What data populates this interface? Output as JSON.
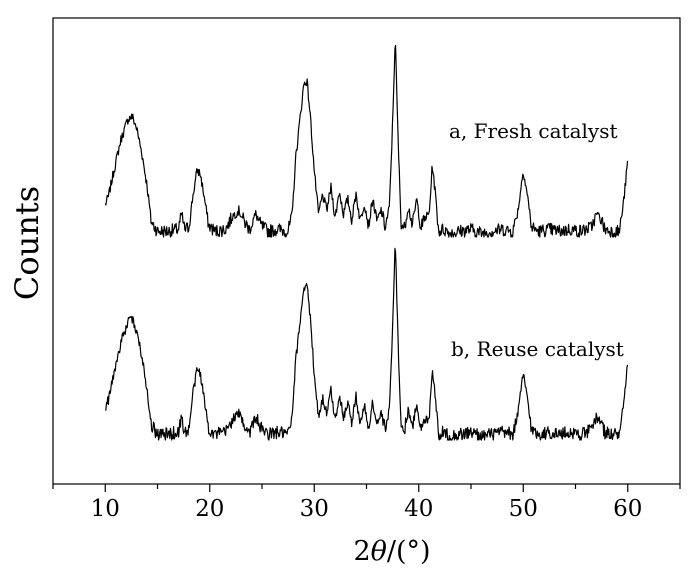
{
  "chart_data": {
    "type": "line",
    "xlabel_prefix": "2",
    "xlabel_symbol": "θ",
    "xlabel_suffix": "/(°)",
    "ylabel": "Counts",
    "xlim": [
      5,
      65
    ],
    "xticks": [
      10,
      20,
      30,
      40,
      50,
      60
    ],
    "xminor_step": 5,
    "yticks": [],
    "grid": false,
    "legend": "none",
    "line_color": "#000000",
    "series": [
      {
        "name": "a, Fresh catalyst",
        "points": [
          [
            10.0,
            17
          ],
          [
            10.3,
            21
          ],
          [
            10.8,
            34
          ],
          [
            11.5,
            51
          ],
          [
            12.2,
            62
          ],
          [
            12.6,
            63
          ],
          [
            13.0,
            57
          ],
          [
            13.5,
            44
          ],
          [
            14.0,
            27
          ],
          [
            14.4,
            8
          ],
          [
            15.0,
            3
          ],
          [
            16.0,
            3
          ],
          [
            17.0,
            4
          ],
          [
            17.3,
            12
          ],
          [
            17.6,
            4
          ],
          [
            18.0,
            5
          ],
          [
            18.4,
            22
          ],
          [
            18.8,
            35
          ],
          [
            19.1,
            33
          ],
          [
            19.5,
            20
          ],
          [
            19.9,
            6
          ],
          [
            20.5,
            3
          ],
          [
            21.5,
            4
          ],
          [
            22.2,
            11
          ],
          [
            22.8,
            14
          ],
          [
            23.3,
            8
          ],
          [
            23.8,
            4
          ],
          [
            24.4,
            12
          ],
          [
            24.9,
            6
          ],
          [
            25.6,
            3
          ],
          [
            26.5,
            4
          ],
          [
            27.5,
            3
          ],
          [
            27.9,
            12
          ],
          [
            28.2,
            40
          ],
          [
            28.6,
            60
          ],
          [
            29.0,
            80
          ],
          [
            29.3,
            82
          ],
          [
            29.6,
            65
          ],
          [
            30.0,
            35
          ],
          [
            30.4,
            12
          ],
          [
            30.8,
            22
          ],
          [
            31.2,
            14
          ],
          [
            31.6,
            26
          ],
          [
            32.0,
            10
          ],
          [
            32.4,
            24
          ],
          [
            32.8,
            12
          ],
          [
            33.2,
            20
          ],
          [
            33.6,
            9
          ],
          [
            34.0,
            23
          ],
          [
            34.4,
            8
          ],
          [
            34.8,
            18
          ],
          [
            35.2,
            6
          ],
          [
            35.6,
            20
          ],
          [
            36.0,
            8
          ],
          [
            36.4,
            14
          ],
          [
            36.8,
            5
          ],
          [
            37.2,
            16
          ],
          [
            37.5,
            60
          ],
          [
            37.75,
            105
          ],
          [
            38.0,
            55
          ],
          [
            38.3,
            8
          ],
          [
            38.6,
            4
          ],
          [
            39.0,
            16
          ],
          [
            39.4,
            6
          ],
          [
            39.8,
            20
          ],
          [
            40.2,
            5
          ],
          [
            40.6,
            10
          ],
          [
            41.0,
            12
          ],
          [
            41.3,
            38
          ],
          [
            41.6,
            22
          ],
          [
            41.9,
            3
          ],
          [
            42.4,
            4
          ],
          [
            43.0,
            2
          ],
          [
            44.0,
            3
          ],
          [
            45.0,
            4
          ],
          [
            46.0,
            2
          ],
          [
            47.0,
            3
          ],
          [
            48.0,
            4
          ],
          [
            49.0,
            3
          ],
          [
            49.5,
            14
          ],
          [
            50.0,
            35
          ],
          [
            50.4,
            22
          ],
          [
            50.8,
            5
          ],
          [
            51.5,
            3
          ],
          [
            52.5,
            4
          ],
          [
            53.5,
            3
          ],
          [
            54.5,
            4
          ],
          [
            55.5,
            3
          ],
          [
            56.5,
            5
          ],
          [
            57.0,
            12
          ],
          [
            57.4,
            10
          ],
          [
            57.8,
            4
          ],
          [
            58.5,
            3
          ],
          [
            59.2,
            3
          ],
          [
            59.6,
            18
          ],
          [
            60.0,
            40
          ]
        ]
      },
      {
        "name": "b, Reuse catalyst",
        "points": [
          [
            10.0,
            17
          ],
          [
            10.3,
            21
          ],
          [
            10.8,
            34
          ],
          [
            11.5,
            51
          ],
          [
            12.2,
            62
          ],
          [
            12.6,
            63
          ],
          [
            13.0,
            57
          ],
          [
            13.5,
            44
          ],
          [
            14.0,
            27
          ],
          [
            14.4,
            8
          ],
          [
            15.0,
            3
          ],
          [
            16.0,
            3
          ],
          [
            17.0,
            4
          ],
          [
            17.3,
            12
          ],
          [
            17.6,
            4
          ],
          [
            18.0,
            5
          ],
          [
            18.4,
            25
          ],
          [
            18.8,
            37
          ],
          [
            19.1,
            35
          ],
          [
            19.5,
            20
          ],
          [
            19.9,
            6
          ],
          [
            20.5,
            3
          ],
          [
            21.5,
            4
          ],
          [
            22.2,
            11
          ],
          [
            22.8,
            14
          ],
          [
            23.3,
            8
          ],
          [
            23.8,
            4
          ],
          [
            24.4,
            12
          ],
          [
            24.9,
            6
          ],
          [
            25.6,
            3
          ],
          [
            26.5,
            4
          ],
          [
            27.5,
            3
          ],
          [
            27.9,
            12
          ],
          [
            28.2,
            40
          ],
          [
            28.6,
            60
          ],
          [
            29.0,
            80
          ],
          [
            29.3,
            82
          ],
          [
            29.6,
            65
          ],
          [
            30.0,
            35
          ],
          [
            30.4,
            12
          ],
          [
            30.8,
            22
          ],
          [
            31.2,
            14
          ],
          [
            31.6,
            26
          ],
          [
            32.0,
            10
          ],
          [
            32.4,
            24
          ],
          [
            32.8,
            12
          ],
          [
            33.2,
            20
          ],
          [
            33.6,
            9
          ],
          [
            34.0,
            23
          ],
          [
            34.4,
            8
          ],
          [
            34.8,
            18
          ],
          [
            35.2,
            6
          ],
          [
            35.6,
            20
          ],
          [
            36.0,
            8
          ],
          [
            36.4,
            14
          ],
          [
            36.8,
            5
          ],
          [
            37.2,
            16
          ],
          [
            37.5,
            60
          ],
          [
            37.75,
            106
          ],
          [
            38.0,
            55
          ],
          [
            38.3,
            8
          ],
          [
            38.6,
            4
          ],
          [
            39.0,
            16
          ],
          [
            39.4,
            6
          ],
          [
            39.8,
            20
          ],
          [
            40.2,
            5
          ],
          [
            40.6,
            10
          ],
          [
            41.0,
            12
          ],
          [
            41.3,
            38
          ],
          [
            41.6,
            22
          ],
          [
            41.9,
            3
          ],
          [
            42.4,
            4
          ],
          [
            43.0,
            2
          ],
          [
            44.0,
            3
          ],
          [
            45.0,
            4
          ],
          [
            46.0,
            2
          ],
          [
            47.0,
            3
          ],
          [
            48.0,
            4
          ],
          [
            49.0,
            3
          ],
          [
            49.5,
            14
          ],
          [
            50.0,
            35
          ],
          [
            50.4,
            22
          ],
          [
            50.8,
            5
          ],
          [
            51.5,
            3
          ],
          [
            52.5,
            4
          ],
          [
            53.5,
            3
          ],
          [
            54.5,
            4
          ],
          [
            55.5,
            3
          ],
          [
            56.5,
            5
          ],
          [
            57.0,
            12
          ],
          [
            57.4,
            10
          ],
          [
            57.8,
            4
          ],
          [
            58.5,
            3
          ],
          [
            59.2,
            3
          ],
          [
            59.6,
            18
          ],
          [
            60.0,
            40
          ]
        ]
      }
    ]
  }
}
